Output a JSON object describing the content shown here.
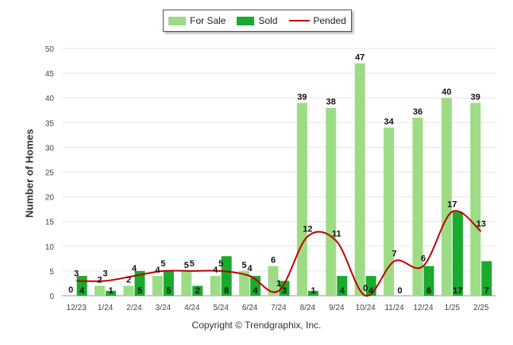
{
  "chart_data": {
    "type": "bar",
    "title": "",
    "xlabel": "",
    "ylabel": "Number of Homes",
    "ylim": [
      0,
      50
    ],
    "yticks": [
      0,
      5,
      10,
      15,
      20,
      25,
      30,
      35,
      40,
      45,
      50
    ],
    "grid": true,
    "legend_position": "top-center",
    "categories": [
      "12/23",
      "1/24",
      "2/24",
      "3/24",
      "4/24",
      "5/24",
      "6/24",
      "7/24",
      "8/24",
      "9/24",
      "10/24",
      "11/24",
      "12/24",
      "1/25",
      "2/25"
    ],
    "series": [
      {
        "name": "For Sale",
        "type": "bar",
        "color": "#9ddc85",
        "values": [
          0,
          2,
          2,
          4,
          5,
          4,
          5,
          6,
          39,
          38,
          47,
          34,
          36,
          40,
          39
        ]
      },
      {
        "name": "Sold",
        "type": "bar",
        "color": "#1aaa2d",
        "values": [
          4,
          1,
          5,
          5,
          2,
          8,
          4,
          3,
          1,
          4,
          4,
          0,
          6,
          17,
          7
        ]
      },
      {
        "name": "Pended",
        "type": "line",
        "color": "#c00000",
        "values": [
          3,
          3,
          4,
          5,
          5,
          5,
          4,
          1,
          12,
          11,
          0,
          7,
          6,
          17,
          13
        ]
      }
    ]
  },
  "footer": "Copyright © Trendgraphix, Inc."
}
